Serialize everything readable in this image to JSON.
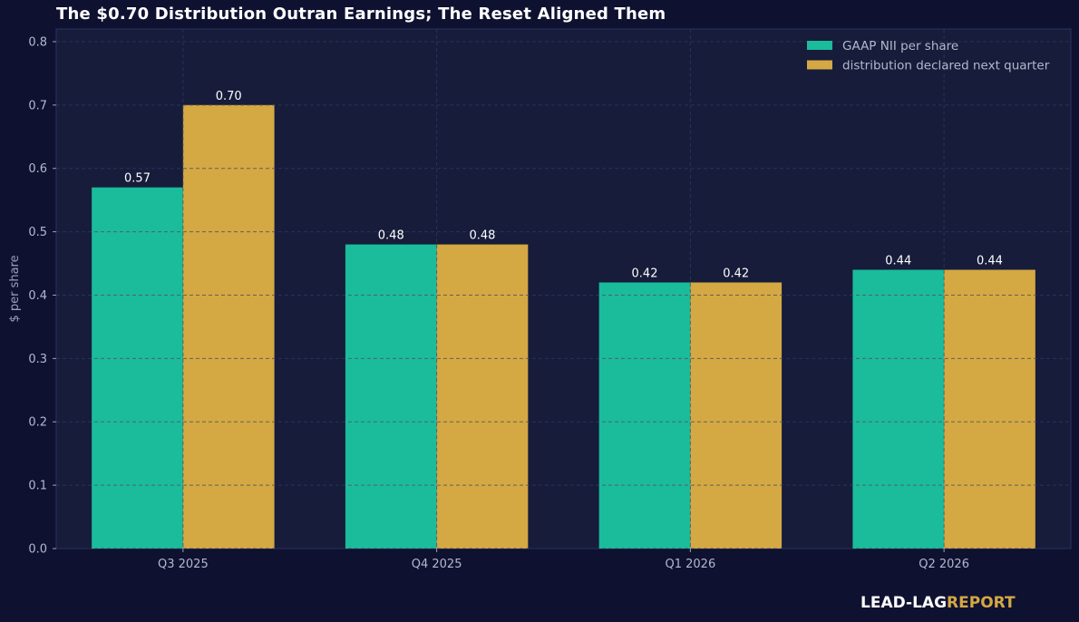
{
  "colors": {
    "background": "#0f1131",
    "plot_background": "#161c3a",
    "nii": "#1abc9c",
    "distribution": "#d4a843",
    "brand_accent": "#d4a843"
  },
  "brand": {
    "part1": "LEAD-LAG",
    "part2": "REPORT"
  },
  "chart_data": {
    "type": "bar",
    "title": "The $0.70 Distribution Outran Earnings; The Reset Aligned Them",
    "xlabel": "",
    "ylabel": "$ per share",
    "categories": [
      "Q3 2025",
      "Q4 2025",
      "Q1 2026",
      "Q2 2026"
    ],
    "series": [
      {
        "name": "GAAP NII per share",
        "values": [
          0.57,
          0.48,
          0.42,
          0.44
        ],
        "labels": [
          "0.57",
          "0.48",
          "0.42",
          "0.44"
        ],
        "color": "#1abc9c"
      },
      {
        "name": "distribution declared next quarter",
        "values": [
          0.7,
          0.48,
          0.42,
          0.44
        ],
        "labels": [
          "0.70",
          "0.48",
          "0.42",
          "0.44"
        ],
        "color": "#d4a843"
      }
    ],
    "ylim": [
      0,
      0.82
    ],
    "yticks": [
      "0.0",
      "0.1",
      "0.2",
      "0.3",
      "0.4",
      "0.5",
      "0.6",
      "0.7",
      "0.8"
    ],
    "grid": true,
    "legend_position": "top-right"
  }
}
